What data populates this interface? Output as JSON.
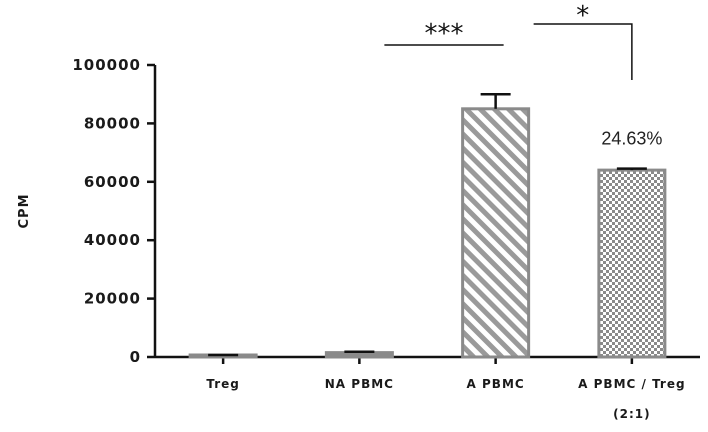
{
  "chart_data": {
    "type": "bar",
    "ylabel": "CPM",
    "xlabel": "",
    "ylim": [
      0,
      100000
    ],
    "yticks": [
      "0",
      "20000",
      "40000",
      "60000",
      "80000",
      "100000"
    ],
    "yticks_values": [
      0,
      20000,
      40000,
      60000,
      80000,
      100000
    ],
    "categories": [
      "Treg",
      "NA PBMC",
      "A PBMC",
      "A PBMC / Treg"
    ],
    "category_sublabels": [
      "",
      "",
      "",
      "(2:1)"
    ],
    "values": [
      500,
      1500,
      85000,
      64000
    ],
    "errors": [
      200,
      300,
      5000,
      500
    ],
    "fills": [
      "solid",
      "solid",
      "diagonal-hatch",
      "checker"
    ],
    "colors": {
      "axis": "#111111",
      "bar_edge": "#8a8a8a",
      "bar_fill": "#ffffff",
      "hatch": "#9a9a9a"
    },
    "annotations": [
      {
        "text": "***",
        "from": "NA PBMC",
        "to": "A PBMC"
      },
      {
        "text": "*",
        "from": "A PBMC",
        "to": "A PBMC / Treg"
      },
      {
        "text": "24.63%",
        "over": "A PBMC / Treg"
      }
    ]
  }
}
